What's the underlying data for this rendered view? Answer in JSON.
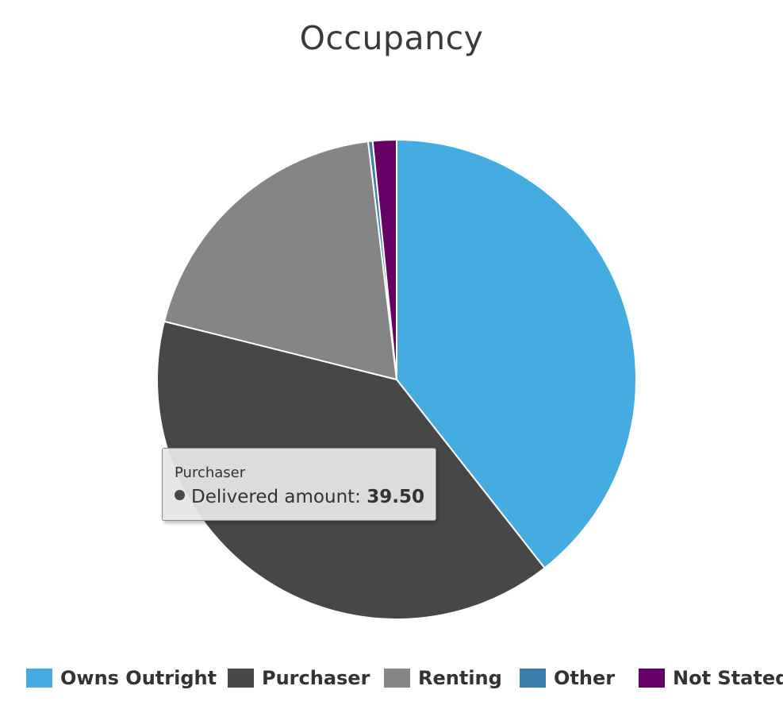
{
  "title": "Occupancy",
  "chart_data": {
    "type": "pie",
    "title": "Occupancy",
    "series_label": "Delivered amount",
    "categories": [
      "Owns Outright",
      "Purchaser",
      "Renting",
      "Other",
      "Not Stated"
    ],
    "values": [
      39.4,
      39.5,
      19.2,
      0.3,
      1.6
    ],
    "colors": [
      "#45ace1",
      "#474747",
      "#858585",
      "#3a7ea9",
      "#650065"
    ],
    "start_angle_deg": 0,
    "direction": "clockwise",
    "legend_position": "bottom"
  },
  "tooltip": {
    "category": "Purchaser",
    "series_label": "Delivered amount",
    "value": "39.50",
    "color": "#474747"
  },
  "legend": {
    "items": [
      {
        "label": "Owns Outright",
        "color": "#45ace1"
      },
      {
        "label": "Purchaser",
        "color": "#474747"
      },
      {
        "label": "Renting",
        "color": "#858585"
      },
      {
        "label": "Other",
        "color": "#3a7ea9"
      },
      {
        "label": "Not Stated",
        "color": "#650065"
      }
    ]
  }
}
